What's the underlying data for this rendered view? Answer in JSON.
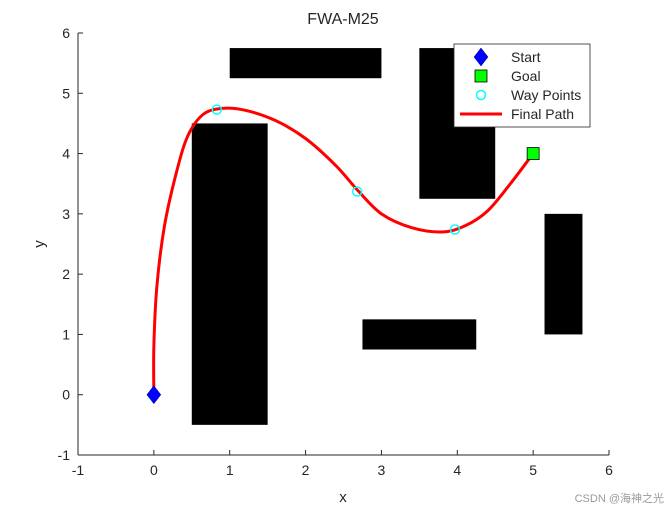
{
  "chart_data": {
    "type": "scatter",
    "title": "FWA-M25",
    "xlabel": "x",
    "ylabel": "y",
    "xlim": [
      -1,
      6
    ],
    "ylim": [
      -1,
      6
    ],
    "xticks": [
      -1,
      0,
      1,
      2,
      3,
      4,
      5,
      6
    ],
    "yticks": [
      -1,
      0,
      1,
      2,
      3,
      4,
      5,
      6
    ],
    "grid": false,
    "legend_position": "top-right",
    "obstacles": [
      {
        "x0": 1.0,
        "x1": 3.0,
        "y0": 5.25,
        "y1": 5.75
      },
      {
        "x0": 3.5,
        "x1": 4.5,
        "y0": 3.25,
        "y1": 5.75
      },
      {
        "x0": 0.5,
        "x1": 1.5,
        "y0": -0.5,
        "y1": 4.5
      },
      {
        "x0": 5.15,
        "x1": 5.65,
        "y0": 1.0,
        "y1": 3.0
      },
      {
        "x0": 2.75,
        "x1": 4.25,
        "y0": 0.75,
        "y1": 1.25
      }
    ],
    "series": [
      {
        "name": "Start",
        "marker": "diamond",
        "color": "#0000ff",
        "points": [
          [
            0,
            0
          ]
        ]
      },
      {
        "name": "Goal",
        "marker": "square",
        "color": "#00ff00",
        "points": [
          [
            5,
            4
          ]
        ]
      },
      {
        "name": "Way Points",
        "marker": "circle-open",
        "color": "#00ffff",
        "points": [
          [
            0.83,
            4.73
          ],
          [
            2.68,
            3.37
          ],
          [
            3.97,
            2.74
          ]
        ]
      },
      {
        "name": "Final Path",
        "marker": "line",
        "color": "#ff0000",
        "points": [
          [
            0,
            0
          ],
          [
            0.0,
            0.8
          ],
          [
            0.04,
            1.8
          ],
          [
            0.14,
            2.8
          ],
          [
            0.3,
            3.7
          ],
          [
            0.45,
            4.3
          ],
          [
            0.65,
            4.65
          ],
          [
            0.9,
            4.75
          ],
          [
            1.2,
            4.72
          ],
          [
            1.6,
            4.55
          ],
          [
            2.0,
            4.25
          ],
          [
            2.4,
            3.8
          ],
          [
            2.68,
            3.4
          ],
          [
            3.0,
            3.0
          ],
          [
            3.4,
            2.77
          ],
          [
            3.8,
            2.7
          ],
          [
            4.1,
            2.8
          ],
          [
            4.4,
            3.05
          ],
          [
            4.7,
            3.5
          ],
          [
            5,
            4
          ]
        ]
      }
    ]
  },
  "watermark": "CSDN @海神之光",
  "colors": {
    "axis": "#262626",
    "obstacle": "#000000",
    "background": "#ffffff"
  }
}
